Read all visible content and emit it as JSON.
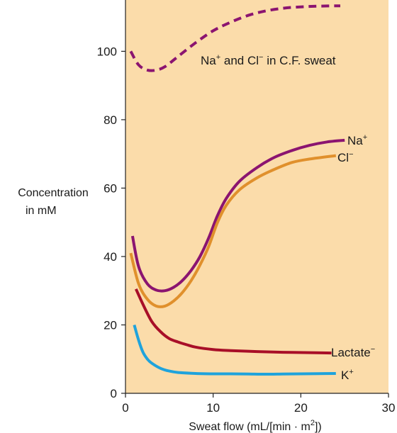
{
  "chart_data": {
    "type": "line",
    "xlabel": "Sweat flow (mL/[min · m",
    "xlabel_sup": "2",
    "xlabel_tail": "])",
    "ylabel_line1": "Concentration",
    "ylabel_line2": "in mM",
    "xlim": [
      0,
      30
    ],
    "ylim": [
      0,
      115
    ],
    "x_ticks": [
      "0",
      "10",
      "20",
      "30"
    ],
    "y_ticks": [
      "0",
      "20",
      "40",
      "60",
      "80",
      "100"
    ],
    "background_color": "#fbdcaa",
    "grid": false,
    "series": [
      {
        "name": "Na+ and Cl− in C.F. sweat",
        "label_parts": [
          "Na",
          "+",
          " and Cl",
          "−",
          " in C.F. sweat"
        ],
        "color": "#8b1470",
        "dashed": true,
        "x": [
          0.6,
          1.5,
          2.5,
          3.5,
          4.5,
          6,
          8,
          10,
          12,
          14,
          16,
          18,
          20,
          22,
          24.5
        ],
        "y": [
          100,
          96,
          94.5,
          94.5,
          95.5,
          98.5,
          102.5,
          106,
          108.5,
          110.5,
          111.8,
          112.6,
          113,
          113.2,
          113.3
        ]
      },
      {
        "name": "Na+",
        "label_parts": [
          "Na",
          "+"
        ],
        "color": "#8b1470",
        "dashed": false,
        "x": [
          0.8,
          1.5,
          2.5,
          3.5,
          4.5,
          5.5,
          6.5,
          7.5,
          8.5,
          9.5,
          10.5,
          11.5,
          13,
          15,
          17,
          19,
          21,
          23,
          25
        ],
        "y": [
          46,
          37,
          32,
          30.2,
          30,
          31,
          33,
          36,
          40,
          45.5,
          52,
          57,
          62,
          66,
          69,
          71,
          72.5,
          73.5,
          74
        ]
      },
      {
        "name": "Cl−",
        "label_parts": [
          "Cl",
          "−"
        ],
        "color": "#e0902c",
        "dashed": false,
        "x": [
          0.6,
          1.5,
          2.5,
          3.5,
          4.5,
          5.5,
          6.5,
          7.5,
          8.5,
          9.5,
          10.5,
          11.5,
          13,
          15,
          17,
          19,
          21,
          24
        ],
        "y": [
          41,
          32,
          27.5,
          25.5,
          25.5,
          27,
          29.5,
          33,
          37.5,
          43,
          50,
          55,
          59.5,
          63,
          65.5,
          67.5,
          68.5,
          69.5
        ]
      },
      {
        "name": "Lactate−",
        "label_parts": [
          "Lactate",
          "−"
        ],
        "color": "#a80f28",
        "dashed": false,
        "x": [
          1.2,
          2,
          3,
          4,
          5,
          6,
          7,
          8,
          10,
          12,
          15,
          18,
          21,
          23.5
        ],
        "y": [
          30.5,
          26,
          21,
          18,
          16,
          15,
          14.2,
          13.5,
          12.8,
          12.5,
          12.2,
          12,
          11.9,
          11.8
        ]
      },
      {
        "name": "K+",
        "label_parts": [
          "K",
          "+"
        ],
        "color": "#1fa3dc",
        "dashed": false,
        "x": [
          1,
          1.5,
          2,
          2.5,
          3,
          4,
          5,
          6,
          8,
          10,
          12,
          14,
          16,
          18,
          20,
          22,
          24
        ],
        "y": [
          20,
          15.5,
          12,
          10,
          8.8,
          7.3,
          6.5,
          6.1,
          5.8,
          5.7,
          5.7,
          5.65,
          5.6,
          5.65,
          5.7,
          5.75,
          5.8
        ]
      }
    ]
  }
}
